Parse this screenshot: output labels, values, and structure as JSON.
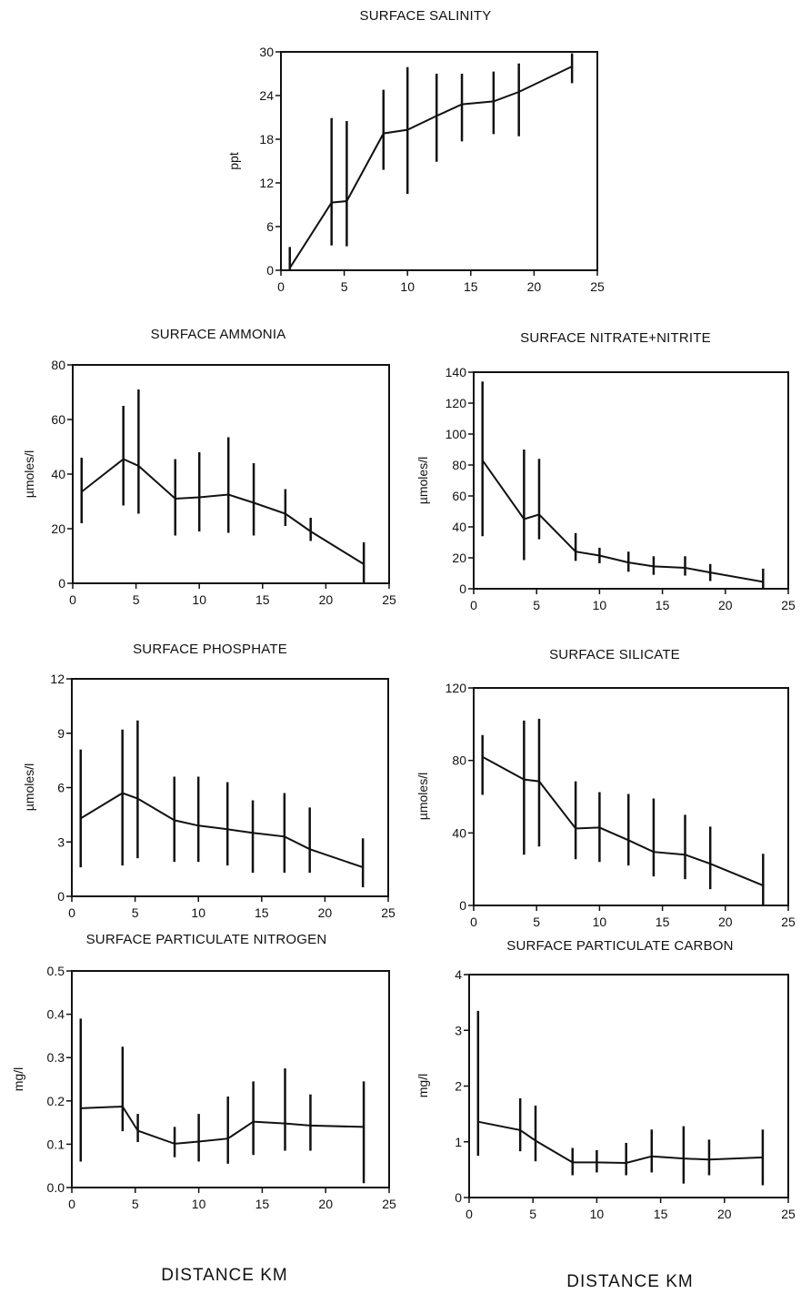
{
  "chart_data": [
    {
      "id": "salinity",
      "type": "line",
      "title": "SURFACE SALINITY",
      "ylabel": "ppt",
      "xlabel": "",
      "xlim": [
        0,
        25
      ],
      "ylim": [
        0,
        30
      ],
      "xticks": [
        "0",
        "5",
        "10",
        "15",
        "20",
        "25"
      ],
      "yticks": [
        "0",
        "6",
        "12",
        "18",
        "24",
        "30"
      ],
      "xtick_values": [
        0,
        5,
        10,
        15,
        20,
        25
      ],
      "ytick_values": [
        0,
        6,
        12,
        18,
        24,
        30
      ],
      "x": [
        0.7,
        4.0,
        5.2,
        8.1,
        10.0,
        12.3,
        14.3,
        16.8,
        18.8,
        23.0
      ],
      "values": [
        0.3,
        9.3,
        9.5,
        18.8,
        19.3,
        21.2,
        22.8,
        23.2,
        24.5,
        28.0
      ],
      "err_low": [
        0,
        3.4,
        3.3,
        13.8,
        10.5,
        14.9,
        17.7,
        18.7,
        18.4,
        25.7
      ],
      "err_high": [
        3.2,
        20.9,
        20.5,
        24.8,
        27.9,
        27.0,
        27.0,
        27.3,
        28.4,
        29.8
      ]
    },
    {
      "id": "ammonia",
      "type": "line",
      "title": "SURFACE AMMONIA",
      "ylabel": "µmoles/l",
      "xlabel": "",
      "xlim": [
        0,
        25
      ],
      "ylim": [
        0,
        80
      ],
      "xticks": [
        "0",
        "5",
        "10",
        "15",
        "20",
        "25"
      ],
      "yticks": [
        "0",
        "20",
        "40",
        "60",
        "80"
      ],
      "xtick_values": [
        0,
        5,
        10,
        15,
        20,
        25
      ],
      "ytick_values": [
        0,
        20,
        40,
        60,
        80
      ],
      "x": [
        0.7,
        4.0,
        5.2,
        8.1,
        10.0,
        12.3,
        14.3,
        16.8,
        18.8,
        23.0
      ],
      "values": [
        33.5,
        45.5,
        43.0,
        31.0,
        31.5,
        32.5,
        29.5,
        25.5,
        19.0,
        7.0
      ],
      "err_low": [
        22.0,
        28.5,
        25.5,
        17.5,
        19.0,
        18.5,
        17.5,
        21.0,
        15.5,
        0.0
      ],
      "err_high": [
        46.0,
        65.0,
        71.0,
        45.5,
        48.0,
        53.5,
        44.0,
        34.5,
        24.0,
        15.0
      ]
    },
    {
      "id": "nitrate",
      "type": "line",
      "title": "SURFACE NITRATE+NITRITE",
      "ylabel": "µmoles/l",
      "xlabel": "",
      "xlim": [
        0,
        25
      ],
      "ylim": [
        0,
        140
      ],
      "xticks": [
        "0",
        "5",
        "10",
        "15",
        "20",
        "25"
      ],
      "yticks": [
        "0",
        "20",
        "40",
        "60",
        "80",
        "100",
        "120",
        "140"
      ],
      "xtick_values": [
        0,
        5,
        10,
        15,
        20,
        25
      ],
      "ytick_values": [
        0,
        20,
        40,
        60,
        80,
        100,
        120,
        140
      ],
      "x": [
        0.7,
        4.0,
        5.2,
        8.1,
        10.0,
        12.3,
        14.3,
        16.8,
        18.8,
        23.0
      ],
      "values": [
        83.0,
        45.0,
        48.0,
        24.0,
        21.5,
        17.0,
        14.5,
        13.5,
        10.5,
        4.5
      ],
      "err_low": [
        34.0,
        18.5,
        32.0,
        18.0,
        16.5,
        11.0,
        9.0,
        8.5,
        5.0,
        0.0
      ],
      "err_high": [
        134.0,
        90.0,
        84.0,
        36.0,
        26.5,
        24.0,
        21.0,
        21.0,
        16.0,
        13.0
      ]
    },
    {
      "id": "phosphate",
      "type": "line",
      "title": "SURFACE PHOSPHATE",
      "ylabel": "µmoles/l",
      "xlabel": "",
      "xlim": [
        0,
        25
      ],
      "ylim": [
        0,
        12
      ],
      "xticks": [
        "0",
        "5",
        "10",
        "15",
        "20",
        "25"
      ],
      "yticks": [
        "0",
        "3",
        "6",
        "9",
        "12"
      ],
      "xtick_values": [
        0,
        5,
        10,
        15,
        20,
        25
      ],
      "ytick_values": [
        0,
        3,
        6,
        9,
        12
      ],
      "x": [
        0.7,
        4.0,
        5.2,
        8.1,
        10.0,
        12.3,
        14.3,
        16.8,
        18.8,
        23.0
      ],
      "values": [
        4.3,
        5.7,
        5.4,
        4.2,
        3.9,
        3.7,
        3.5,
        3.3,
        2.6,
        1.6
      ],
      "err_low": [
        1.6,
        1.7,
        2.1,
        1.9,
        1.9,
        1.7,
        1.3,
        1.3,
        1.3,
        0.5
      ],
      "err_high": [
        8.1,
        9.2,
        9.7,
        6.6,
        6.6,
        6.3,
        5.3,
        5.7,
        4.9,
        3.2
      ]
    },
    {
      "id": "silicate",
      "type": "line",
      "title": "SURFACE SILICATE",
      "ylabel": "µmoles/l",
      "xlabel": "",
      "xlim": [
        0,
        25
      ],
      "ylim": [
        0,
        120
      ],
      "xticks": [
        "0",
        "5",
        "10",
        "15",
        "20",
        "25"
      ],
      "yticks": [
        "0",
        "40",
        "80",
        "120"
      ],
      "xtick_values": [
        0,
        5,
        10,
        15,
        20,
        25
      ],
      "ytick_values": [
        0,
        40,
        80,
        120
      ],
      "x": [
        0.7,
        4.0,
        5.2,
        8.1,
        10.0,
        12.3,
        14.3,
        16.8,
        18.8,
        23.0
      ],
      "values": [
        82.0,
        69.5,
        68.5,
        42.5,
        43.0,
        36.0,
        29.5,
        28.0,
        23.0,
        11.0
      ],
      "err_low": [
        61.0,
        28.0,
        32.5,
        25.5,
        24.0,
        22.0,
        16.0,
        14.5,
        9.0,
        0.0
      ],
      "err_high": [
        94.0,
        102.0,
        103.0,
        68.5,
        62.5,
        61.5,
        59.0,
        50.0,
        43.5,
        28.5
      ]
    },
    {
      "id": "part-nitrogen",
      "type": "line",
      "title": "SURFACE PARTICULATE NITROGEN",
      "ylabel": "mg/l",
      "xlabel": "DISTANCE  KM",
      "xlim": [
        0,
        25
      ],
      "ylim": [
        0,
        0.5
      ],
      "xticks": [
        "0",
        "5",
        "10",
        "15",
        "20",
        "25"
      ],
      "yticks": [
        "0.0",
        "0.1",
        "0.2",
        "0.3",
        "0.4",
        "0.5"
      ],
      "xtick_values": [
        0,
        5,
        10,
        15,
        20,
        25
      ],
      "ytick_values": [
        0,
        0.1,
        0.2,
        0.3,
        0.4,
        0.5
      ],
      "x": [
        0.7,
        4.0,
        5.2,
        8.1,
        10.0,
        12.3,
        14.3,
        16.8,
        18.8,
        23.0
      ],
      "values": [
        0.183,
        0.187,
        0.131,
        0.101,
        0.106,
        0.113,
        0.152,
        0.148,
        0.143,
        0.14
      ],
      "err_low": [
        0.06,
        0.13,
        0.105,
        0.07,
        0.06,
        0.055,
        0.075,
        0.085,
        0.085,
        0.01
      ],
      "err_high": [
        0.39,
        0.325,
        0.17,
        0.14,
        0.17,
        0.21,
        0.245,
        0.275,
        0.215,
        0.245
      ]
    },
    {
      "id": "part-carbon",
      "type": "line",
      "title": "SURFACE PARTICULATE CARBON",
      "ylabel": "mg/l",
      "xlabel": "DISTANCE  KM",
      "xlim": [
        0,
        25
      ],
      "ylim": [
        0,
        4
      ],
      "xticks": [
        "0",
        "5",
        "10",
        "15",
        "20",
        "25"
      ],
      "yticks": [
        "0",
        "1",
        "2",
        "3",
        "4"
      ],
      "xtick_values": [
        0,
        5,
        10,
        15,
        20,
        25
      ],
      "ytick_values": [
        0,
        1,
        2,
        3,
        4
      ],
      "x": [
        0.7,
        4.0,
        5.2,
        8.1,
        10.0,
        12.3,
        14.3,
        16.8,
        18.8,
        23.0
      ],
      "values": [
        1.36,
        1.21,
        1.02,
        0.63,
        0.63,
        0.62,
        0.74,
        0.7,
        0.68,
        0.72
      ],
      "err_low": [
        0.75,
        0.83,
        0.65,
        0.4,
        0.45,
        0.4,
        0.45,
        0.25,
        0.4,
        0.22
      ],
      "err_high": [
        3.35,
        1.78,
        1.65,
        0.89,
        0.85,
        0.98,
        1.22,
        1.28,
        1.04,
        1.22
      ]
    }
  ]
}
